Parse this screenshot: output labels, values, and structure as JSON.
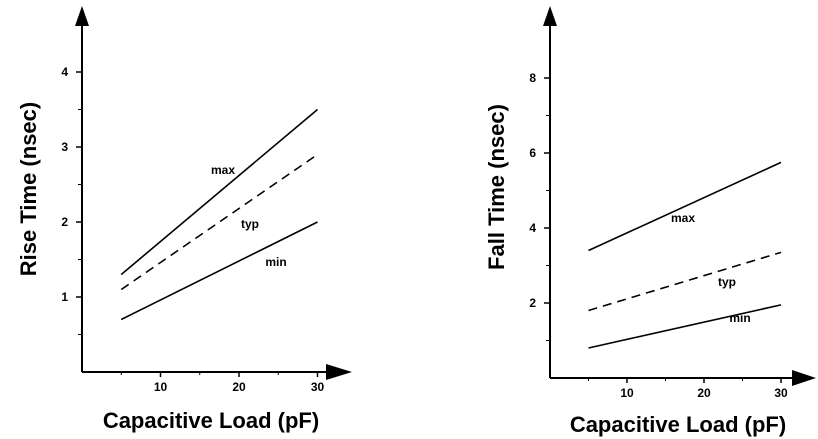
{
  "chart_data": [
    {
      "type": "line",
      "title": "",
      "xlabel": "Capacitive Load (pF)",
      "ylabel": "Rise Time (nsec)",
      "xlim": [
        0,
        30
      ],
      "ylim": [
        0,
        4.5
      ],
      "xticks": [
        "10",
        "20",
        "30"
      ],
      "yticks": [
        "1",
        "2",
        "3",
        "4"
      ],
      "grid": false,
      "series": [
        {
          "name": "max",
          "x": [
            5,
            30
          ],
          "y": [
            1.3,
            3.5
          ],
          "style": "solid"
        },
        {
          "name": "typ",
          "x": [
            5,
            30
          ],
          "y": [
            1.1,
            2.9
          ],
          "style": "dashed"
        },
        {
          "name": "min",
          "x": [
            5,
            30
          ],
          "y": [
            0.7,
            2.0
          ],
          "style": "solid"
        }
      ]
    },
    {
      "type": "line",
      "title": "",
      "xlabel": "Capacitive Load (pF)",
      "ylabel": "Fall Time (nsec)",
      "xlim": [
        0,
        30
      ],
      "ylim": [
        0,
        9
      ],
      "xticks": [
        "10",
        "20",
        "30"
      ],
      "yticks": [
        "2",
        "4",
        "6",
        "8"
      ],
      "grid": false,
      "series": [
        {
          "name": "max",
          "x": [
            5,
            30
          ],
          "y": [
            3.4,
            5.75
          ],
          "style": "solid"
        },
        {
          "name": "typ",
          "x": [
            5,
            30
          ],
          "y": [
            1.8,
            3.35
          ],
          "style": "dashed"
        },
        {
          "name": "min",
          "x": [
            5,
            30
          ],
          "y": [
            0.8,
            1.95
          ],
          "style": "solid"
        }
      ]
    }
  ]
}
